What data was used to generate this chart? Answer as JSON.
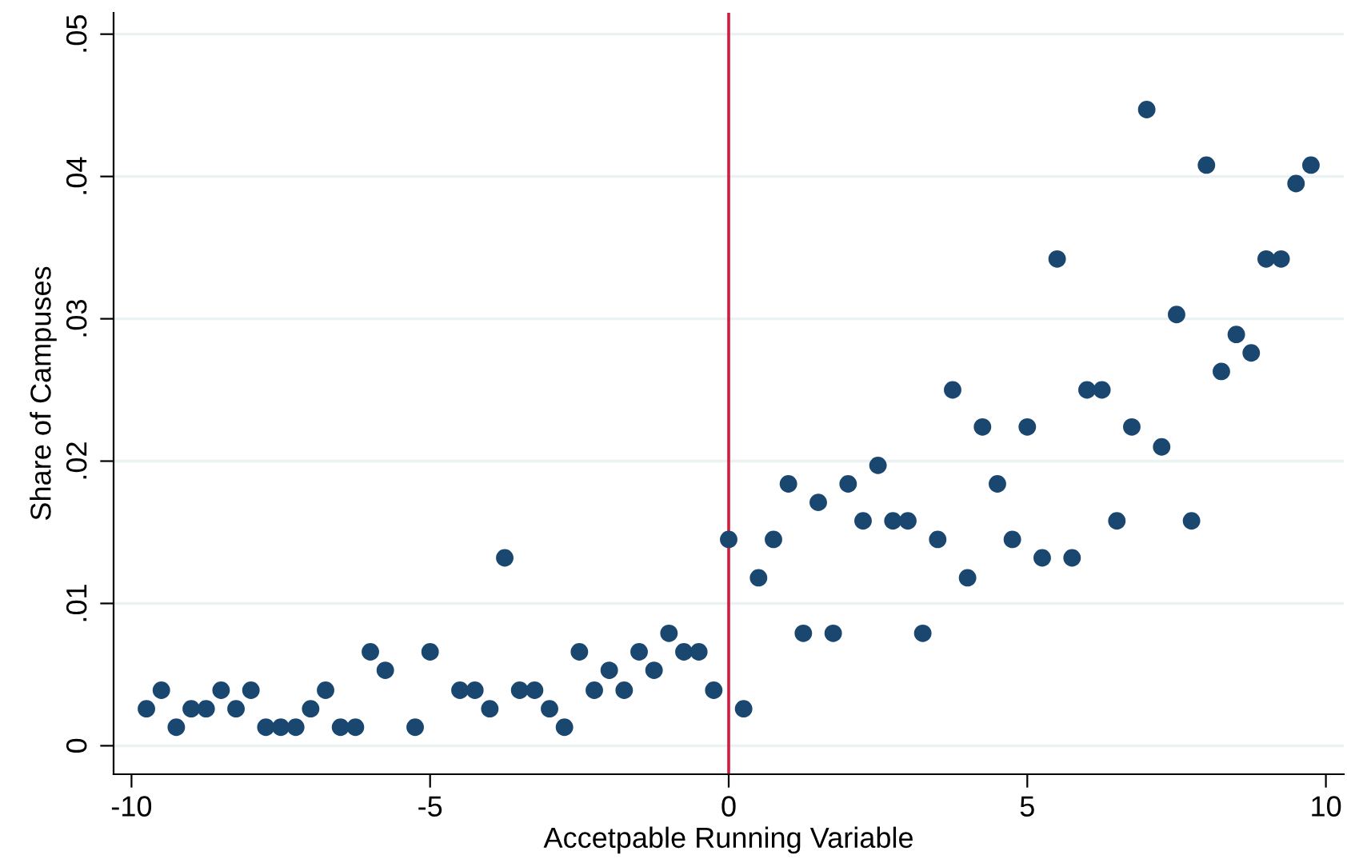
{
  "chart_data": {
    "type": "scatter",
    "xlabel": "Accetpable Running Variable",
    "ylabel": "Share of Campuses",
    "x": [
      -9.75,
      -9.5,
      -9.25,
      -9.0,
      -8.75,
      -8.5,
      -8.25,
      -8.0,
      -7.75,
      -7.5,
      -7.25,
      -7.0,
      -6.75,
      -6.5,
      -6.25,
      -6.0,
      -5.75,
      -5.25,
      -5.0,
      -4.5,
      -4.25,
      -4.0,
      -3.75,
      -3.5,
      -3.25,
      -3.0,
      -2.75,
      -2.5,
      -2.25,
      -2.0,
      -1.75,
      -1.5,
      -1.25,
      -1.0,
      -0.75,
      -0.5,
      -0.25,
      0,
      0.25,
      0.5,
      0.75,
      1.0,
      1.25,
      1.5,
      1.75,
      2.0,
      2.25,
      2.5,
      2.75,
      3.0,
      3.25,
      3.5,
      3.75,
      4.0,
      4.25,
      4.5,
      4.75,
      5.0,
      5.25,
      5.5,
      5.75,
      6.0,
      6.25,
      6.5,
      6.75,
      7.0,
      7.25,
      7.5,
      7.75,
      8.0,
      8.25,
      8.5,
      8.75,
      9.0,
      9.25,
      9.5,
      9.75
    ],
    "series": [
      {
        "color": "#1a476f",
        "values": [
          0.0026,
          0.0039,
          0.0013,
          0.0026,
          0.0026,
          0.0039,
          0.0026,
          0.0039,
          0.0013,
          0.0013,
          0.0013,
          0.0026,
          0.0039,
          0.0013,
          0.0013,
          0.0066,
          0.0053,
          0.0013,
          0.0066,
          0.0039,
          0.0039,
          0.0026,
          0.0132,
          0.0039,
          0.0039,
          0.0026,
          0.0013,
          0.0066,
          0.0039,
          0.0053,
          0.0039,
          0.0066,
          0.0053,
          0.0079,
          0.0066,
          0.0066,
          0.0039,
          0.0145,
          0.0026,
          0.0118,
          0.0145,
          0.0184,
          0.0079,
          0.0171,
          0.0079,
          0.0184,
          0.0158,
          0.0197,
          0.0158,
          0.0158,
          0.0079,
          0.0145,
          0.025,
          0.0118,
          0.0224,
          0.0184,
          0.0145,
          0.0224,
          0.0132,
          0.0342,
          0.0132,
          0.025,
          0.025,
          0.0158,
          0.0224,
          0.0447,
          0.021,
          0.0303,
          0.0158,
          0.0408,
          0.0263,
          0.0289,
          0.0276,
          0.0342,
          0.0342,
          0.0395,
          0.0408
        ]
      }
    ],
    "xlim": [
      -10.3,
      10.3
    ],
    "xticks": [
      -10,
      -5,
      0,
      5,
      10
    ],
    "ylim": [
      -0.002,
      0.0515
    ],
    "yticks": [
      {
        "value": 0,
        "label": "0"
      },
      {
        "value": 0.01,
        "label": ".01"
      },
      {
        "value": 0.02,
        "label": ".02"
      },
      {
        "value": 0.03,
        "label": ".03"
      },
      {
        "value": 0.04,
        "label": ".04"
      },
      {
        "value": 0.05,
        "label": ".05"
      }
    ],
    "grid": "y",
    "marker": "circle",
    "ref_lines": [
      {
        "axis": "x",
        "value": 0,
        "color": "#d6193c"
      }
    ]
  }
}
